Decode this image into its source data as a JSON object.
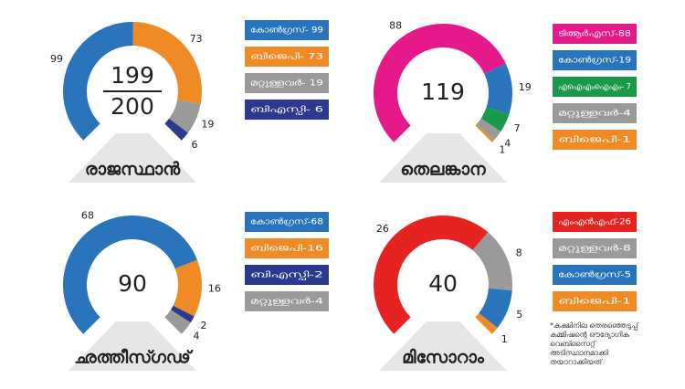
{
  "chart_data": [
    {
      "type": "donut-gauge",
      "title": "രാജസ്ഥാൻ",
      "center": [
        199,
        200
      ],
      "series": [
        {
          "name": "കോൺഗ്രസ്- 99",
          "color": "#2a74bb",
          "values": [
            99
          ]
        },
        {
          "name": "ബിജെപി- 73",
          "color": "#f08a24",
          "values": [
            73
          ]
        },
        {
          "name": "മറ്റുള്ളവർ- 19",
          "color": "#9a9a9a",
          "values": [
            19
          ]
        },
        {
          "name": "ബിഎസ്പി- 6",
          "color": "#2b3990",
          "values": [
            6
          ]
        }
      ]
    },
    {
      "type": "donut-gauge",
      "title": "തെലങ്കാന",
      "center": [
        119
      ],
      "series": [
        {
          "name": "ടിആർഎസ്-88",
          "color": "#e6198a",
          "values": [
            88
          ]
        },
        {
          "name": "കോൺഗ്രസ്-19",
          "color": "#2a74bb",
          "values": [
            19
          ]
        },
        {
          "name": "എഐഎംഐഎം- 7",
          "color": "#1a9a48",
          "values": [
            7
          ]
        },
        {
          "name": "മറ്റുള്ളവർ-4",
          "color": "#9a9a9a",
          "values": [
            4
          ]
        },
        {
          "name": "ബിജെപി-1",
          "color": "#f08a24",
          "values": [
            1
          ]
        }
      ]
    },
    {
      "type": "donut-gauge",
      "title": "ഛത്തീസ്ഗഢ്",
      "center": [
        90
      ],
      "series": [
        {
          "name": "കോൺഗ്രസ്-68",
          "color": "#2a74bb",
          "values": [
            68
          ]
        },
        {
          "name": "ബിജെപി-16",
          "color": "#f08a24",
          "values": [
            16
          ]
        },
        {
          "name": "ബിഎസ്പി-2",
          "color": "#2b3990",
          "values": [
            2
          ]
        },
        {
          "name": "മറ്റുള്ളവർ-4",
          "color": "#9a9a9a",
          "values": [
            4
          ]
        }
      ]
    },
    {
      "type": "donut-gauge",
      "title": "മിസോറാം",
      "center": [
        40
      ],
      "note": "*കക്ഷിനില തെരഞ്ഞെടുപ്പ് കമ്മിഷന്റെ ഔദ്യോഗിക വെബ്സൈറ്റ് അടിസ്ഥാനമാക്കി തയാറാക്കിയത്",
      "series": [
        {
          "name": "എംഎൻഎഫ്-26",
          "color": "#e52421",
          "values": [
            26
          ]
        },
        {
          "name": "മറ്റുള്ളവർ-8",
          "color": "#9a9a9a",
          "values": [
            8
          ]
        },
        {
          "name": "കോൺഗ്രസ്-5",
          "color": "#2a74bb",
          "values": [
            5
          ]
        },
        {
          "name": "ബിജെപി-1",
          "color": "#f08a24",
          "values": [
            1
          ]
        }
      ]
    }
  ]
}
